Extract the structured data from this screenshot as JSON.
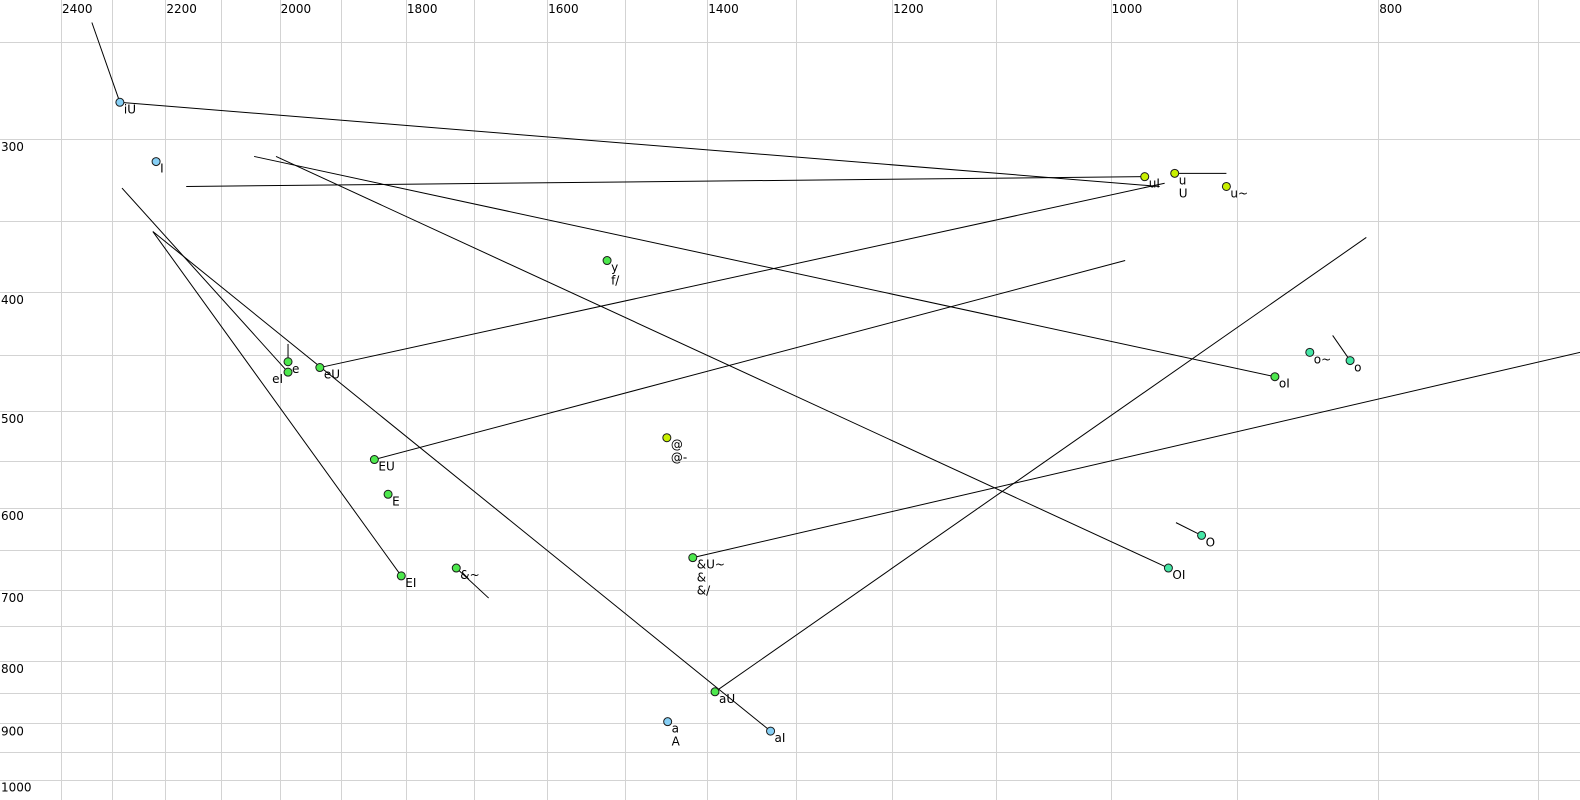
{
  "chart_data": {
    "type": "scatter",
    "title": "",
    "xlabel": "",
    "ylabel": "",
    "x_quantity": "F2 (Hz)",
    "y_quantity": "F1 (Hz)",
    "x_scale": "log",
    "y_scale": "log",
    "x_reversed": true,
    "y_reversed": false,
    "xlim": [
      2430,
      660
    ],
    "ylim": [
      240,
      1020
    ],
    "grid": true,
    "x_grid_step": 100,
    "y_grid_step": 50,
    "x_ticks": [
      2400,
      2200,
      2000,
      1800,
      1600,
      1400,
      1200,
      1000,
      800
    ],
    "y_ticks": [
      300,
      400,
      500,
      600,
      700,
      800,
      900,
      1000
    ],
    "colors": {
      "light_blue": "#86cff5",
      "green": "#4de84d",
      "lime": "#c8f000",
      "teal": "#45e6a6",
      "line": "#000000",
      "grid": "#d3d3d3"
    },
    "points": [
      {
        "labels": [
          "iU"
        ],
        "F2": 2285,
        "F1": 280,
        "color": "light_blue"
      },
      {
        "labels": [
          "I"
        ],
        "F2": 2217,
        "F1": 313,
        "color": "light_blue"
      },
      {
        "labels": [
          "e"
        ],
        "F2": 1986,
        "F1": 456,
        "color": "green"
      },
      {
        "labels": [
          "eI"
        ],
        "F2": 1986,
        "F1": 465,
        "color": "green"
      },
      {
        "labels": [
          "eU"
        ],
        "F2": 1934,
        "F1": 461,
        "color": "green"
      },
      {
        "labels": [
          "EU"
        ],
        "F2": 1848,
        "F1": 548,
        "color": "green"
      },
      {
        "labels": [
          "E"
        ],
        "F2": 1827,
        "F1": 585,
        "color": "green"
      },
      {
        "labels": [
          "EI"
        ],
        "F2": 1807,
        "F1": 682,
        "color": "green"
      },
      {
        "labels": [
          "&~"
        ],
        "F2": 1726,
        "F1": 672,
        "color": "green"
      },
      {
        "labels": [
          "y",
          "f/"
        ],
        "F2": 1522,
        "F1": 377,
        "color": "green"
      },
      {
        "labels": [
          "@",
          "@-"
        ],
        "F2": 1448,
        "F1": 526,
        "color": "lime"
      },
      {
        "labels": [
          "&U~",
          "&",
          "&/"
        ],
        "F2": 1417,
        "F1": 659,
        "color": "green"
      },
      {
        "labels": [
          "aU"
        ],
        "F2": 1391,
        "F1": 848,
        "color": "green"
      },
      {
        "labels": [
          "a",
          "A"
        ],
        "F2": 1447,
        "F1": 897,
        "color": "light_blue"
      },
      {
        "labels": [
          "aI"
        ],
        "F2": 1328,
        "F1": 913,
        "color": "light_blue"
      },
      {
        "labels": [
          "uI"
        ],
        "F2": 972,
        "F1": 322,
        "color": "lime"
      },
      {
        "labels": [
          "u",
          "U"
        ],
        "F2": 948,
        "F1": 320,
        "color": "lime"
      },
      {
        "labels": [
          "u~"
        ],
        "F2": 908,
        "F1": 328,
        "color": "lime"
      },
      {
        "labels": [
          "OI"
        ],
        "F2": 953,
        "F1": 672,
        "color": "teal"
      },
      {
        "labels": [
          "O"
        ],
        "F2": 927,
        "F1": 632,
        "color": "teal"
      },
      {
        "labels": [
          "oI"
        ],
        "F2": 872,
        "F1": 469,
        "color": "green"
      },
      {
        "labels": [
          "o~"
        ],
        "F2": 847,
        "F1": 448,
        "color": "teal"
      },
      {
        "labels": [
          "o"
        ],
        "F2": 819,
        "F1": 455,
        "color": "teal"
      }
    ],
    "trajectories": [
      {
        "from": [
          2339,
          241
        ],
        "to": [
          2285,
          280
        ]
      },
      {
        "from": [
          2285,
          280
        ],
        "to": [
          960,
          328
        ]
      },
      {
        "from": [
          2162,
          328
        ],
        "to": [
          972,
          322
        ]
      },
      {
        "from": [
          2043,
          310
        ],
        "to": [
          872,
          469
        ]
      },
      {
        "from": [
          2006,
          310
        ],
        "to": [
          953,
          672
        ]
      },
      {
        "from": [
          2281,
          329
        ],
        "to": [
          1986,
          465
        ]
      },
      {
        "from": [
          2223,
          357
        ],
        "to": [
          1807,
          682
        ]
      },
      {
        "from": [
          2223,
          357
        ],
        "to": [
          1328,
          913
        ]
      },
      {
        "from": [
          1986,
          441
        ],
        "to": [
          1986,
          456
        ]
      },
      {
        "from": [
          808,
          361
        ],
        "to": [
          1391,
          848
        ]
      },
      {
        "from": [
          1934,
          461
        ],
        "to": [
          956,
          326
        ]
      },
      {
        "from": [
          1848,
          548
        ],
        "to": [
          988,
          377
        ]
      },
      {
        "from": [
          1417,
          659
        ],
        "to": [
          676,
          448
        ]
      },
      {
        "from": [
          1726,
          672
        ],
        "to": [
          1680,
          711
        ]
      },
      {
        "from": [
          947,
          617
        ],
        "to": [
          927,
          632
        ]
      },
      {
        "from": [
          831,
          434
        ],
        "to": [
          819,
          455
        ]
      },
      {
        "from": [
          948,
          320
        ],
        "to": [
          908,
          320
        ]
      }
    ]
  }
}
